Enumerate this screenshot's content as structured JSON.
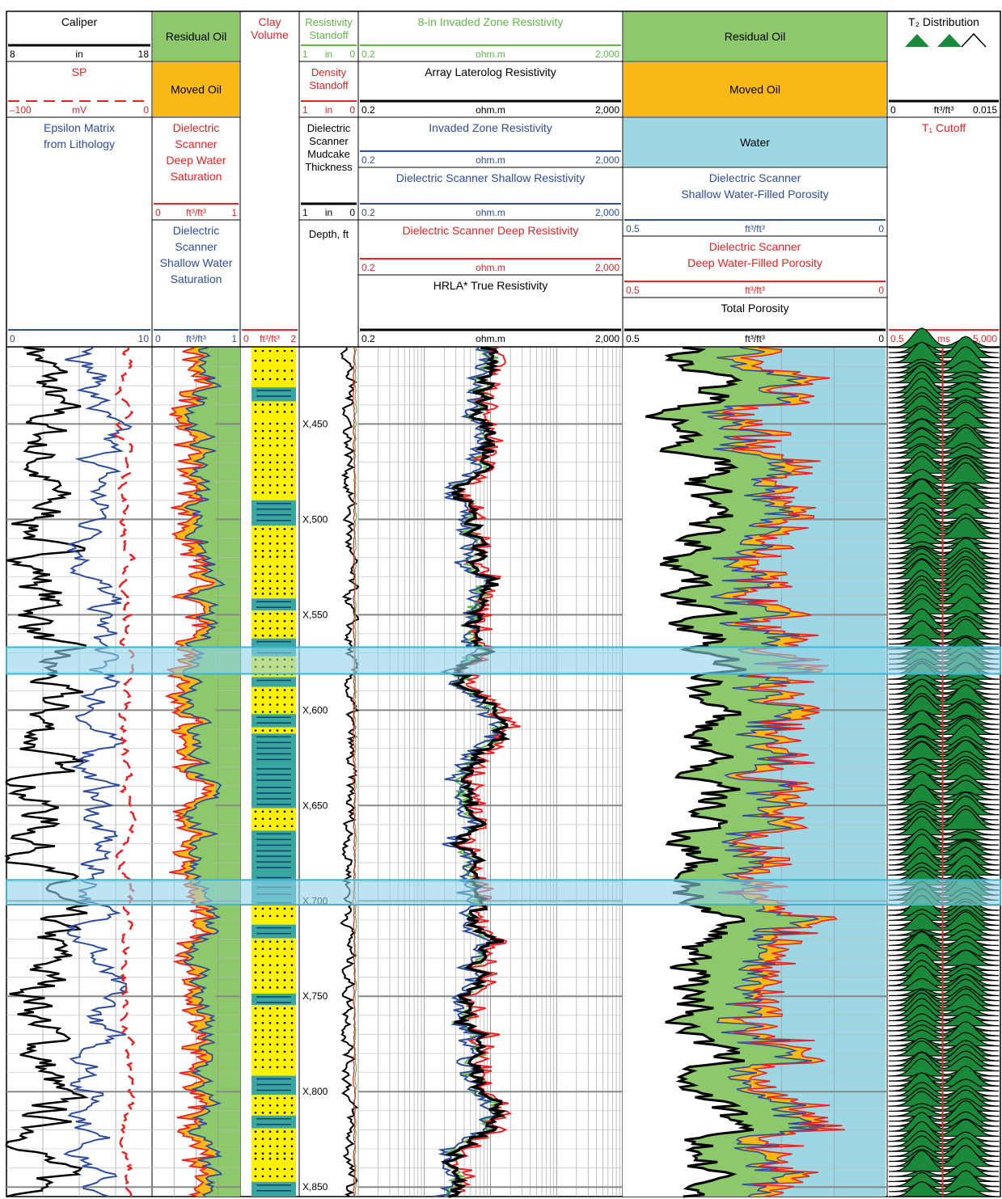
{
  "chart_data": {
    "type": "well-log",
    "depth_unit": "Depth, ft",
    "depth_range": [
      "X,410",
      "X,855"
    ],
    "depth_ticks": [
      "X,450",
      "X,500",
      "X,550",
      "X,600",
      "X,650",
      "X,700",
      "X,750",
      "X,800",
      "X,850"
    ],
    "highlighted_intervals": [
      [
        "X,567",
        "X,581"
      ],
      [
        "X,689",
        "X,702"
      ]
    ],
    "colors": {
      "residual_oil": "#8dc96a",
      "moved_oil": "#fbb915",
      "water": "#9dd7e4",
      "sand": "#fff100",
      "shale": "#3aa6a0",
      "t2": "#1a8a3a",
      "black": "#000000",
      "blue": "#2e4c9e",
      "red": "#ed2024",
      "green": "#5fb946",
      "highlight": "#8fd3e8"
    },
    "tracks": [
      {
        "name": "track1",
        "headers": [
          {
            "title": "Caliper",
            "left": "8",
            "unit": "in",
            "right": "18",
            "color": "black"
          },
          {
            "title": "SP",
            "left": "–100",
            "unit": "mV",
            "right": "0",
            "color": "red",
            "dashed": true
          },
          {
            "title": "Epsilon Matrix\nfrom Lithology",
            "left": "0",
            "unit": "",
            "right": "10",
            "color": "blue"
          }
        ]
      },
      {
        "name": "track2",
        "headers": [
          {
            "fill": "Residual Oil"
          },
          {
            "fill": "Moved Oil"
          },
          {
            "title": "Dielectric\nScanner\nDeep Water\nSaturation",
            "left": "0",
            "unit": "ft³/ft³",
            "right": "1",
            "color": "red"
          },
          {
            "title": "Dielectric\nScanner\nShallow Water\nSaturation",
            "left": "0",
            "unit": "ft³/ft³",
            "right": "1",
            "color": "blue"
          }
        ]
      },
      {
        "name": "track3",
        "headers": [
          {
            "title": "Clay\nVolume",
            "left": "0",
            "unit": "ft³/ft³",
            "right": "2",
            "color": "red"
          }
        ]
      },
      {
        "name": "depth_track",
        "headers": [
          {
            "title": "Resistivity\nStandoff",
            "left": "1",
            "unit": "in",
            "right": "0",
            "color": "green"
          },
          {
            "title": "Density\nStandoff",
            "left": "1",
            "unit": "in",
            "right": "0",
            "color": "red"
          },
          {
            "title": "Dielectric\nScanner\nMudcake\nThickness",
            "left": "1",
            "unit": "in",
            "right": "0",
            "color": "black"
          },
          {
            "title": "Depth, ft"
          }
        ]
      },
      {
        "name": "resistivity_track",
        "scale": "log",
        "headers": [
          {
            "title": "8-in Invaded Zone Resistivity",
            "left": "0.2",
            "unit": "ohm.m",
            "right": "2,000",
            "color": "green"
          },
          {
            "title": "Array Laterolog Resistivity",
            "left": "0.2",
            "unit": "ohm.m",
            "right": "2,000",
            "color": "black"
          },
          {
            "title": "Invaded Zone Resistivity",
            "left": "0.2",
            "unit": "ohm.m",
            "right": "2,000",
            "color": "blue"
          },
          {
            "title": "Dielectric Scanner Shallow Resistivity",
            "left": "0.2",
            "unit": "ohm.m",
            "right": "2,000",
            "color": "blue"
          },
          {
            "title": "Dielectric Scanner Deep Resistivity",
            "left": "0.2",
            "unit": "ohm.m",
            "right": "2,000",
            "color": "red"
          },
          {
            "title": "HRLA* True Resistivity",
            "left": "0.2",
            "unit": "ohm.m",
            "right": "2,000",
            "color": "black"
          }
        ]
      },
      {
        "name": "porosity_track",
        "headers": [
          {
            "fill": "Residual Oil"
          },
          {
            "fill": "Moved Oil"
          },
          {
            "fill": "Water"
          },
          {
            "title": "Dielectric Scanner\nShallow Water-Filled Porosity",
            "left": "0.5",
            "unit": "ft³/ft³",
            "right": "0",
            "color": "blue"
          },
          {
            "title": "Dielectric Scanner\nDeep Water-Filled Porosity",
            "left": "0.5",
            "unit": "ft³/ft³",
            "right": "0",
            "color": "red"
          },
          {
            "title": "Total Porosity",
            "left": "0.5",
            "unit": "ft³/ft³",
            "right": "0",
            "color": "black"
          }
        ]
      },
      {
        "name": "t2_track",
        "headers": [
          {
            "title": "T₂ Distribution",
            "left": "0",
            "unit": "ft³/ft³",
            "right": "0.015",
            "color": "black"
          },
          {
            "title": "T₁ Cutoff",
            "left": "0.5",
            "unit": "ms",
            "right": "5,000",
            "color": "red"
          }
        ]
      }
    ]
  }
}
